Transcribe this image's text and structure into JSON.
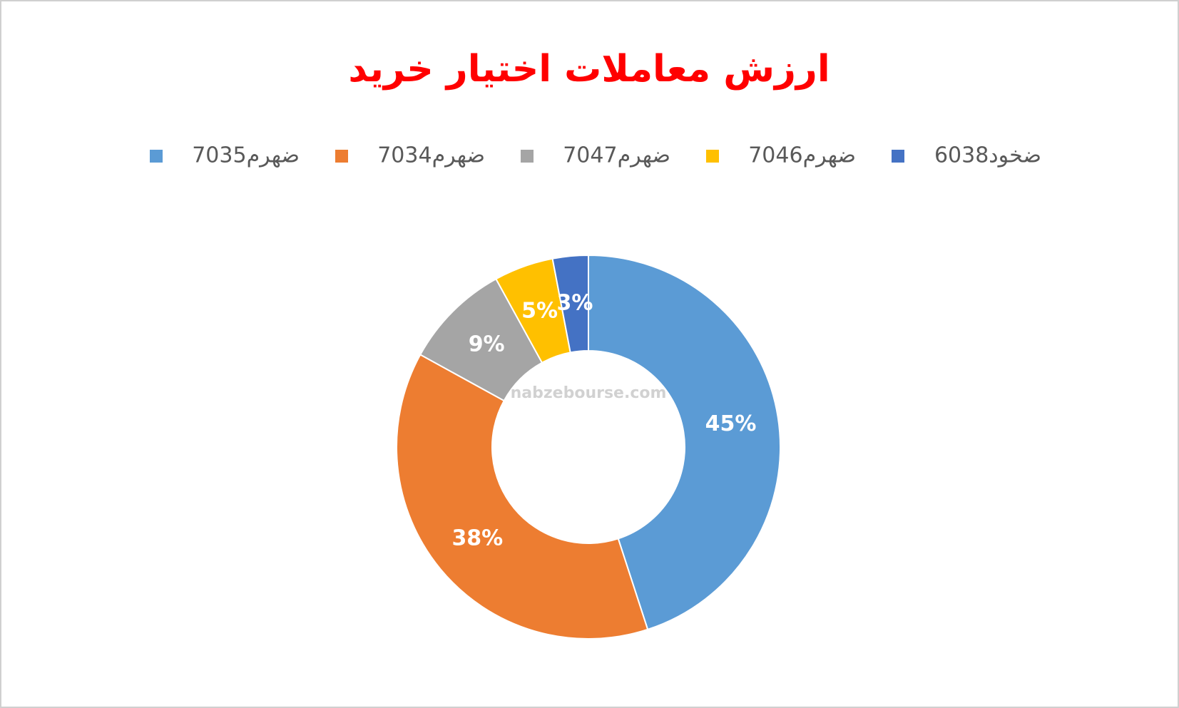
{
  "chart_data": {
    "type": "donut",
    "title": "ارزش معاملات اختیار خرید",
    "categories": [
      "ضهرم7035",
      "ضهرم7034",
      "ضهرم7047",
      "ضهرم7046",
      "ضخود6038"
    ],
    "values": [
      45,
      38,
      9,
      5,
      3
    ],
    "value_labels": [
      "45%",
      "38%",
      "9%",
      "5%",
      "3%"
    ],
    "colors": [
      "#5b9bd5",
      "#ed7d31",
      "#a5a5a5",
      "#ffc000",
      "#4472c4"
    ],
    "watermark": "nabzebourse.com"
  }
}
